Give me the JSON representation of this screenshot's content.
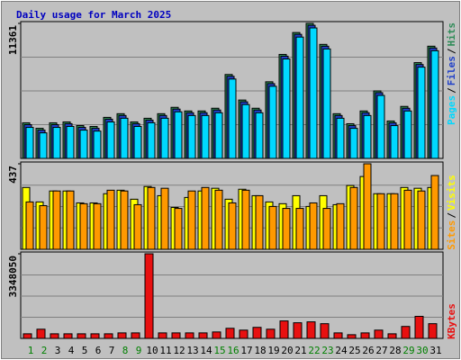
{
  "chart_data": [
    {
      "type": "bar",
      "title": "Daily usage for March 2025",
      "categories": [
        "1",
        "2",
        "3",
        "4",
        "5",
        "6",
        "7",
        "8",
        "9",
        "10",
        "11",
        "12",
        "13",
        "14",
        "15",
        "16",
        "17",
        "18",
        "19",
        "20",
        "21",
        "22",
        "23",
        "24",
        "25",
        "26",
        "27",
        "28",
        "29",
        "30",
        "31"
      ],
      "category_colors": [
        "#008000",
        "#008000",
        "#000000",
        "#000000",
        "#000000",
        "#000000",
        "#000000",
        "#008000",
        "#008000",
        "#000000",
        "#000000",
        "#000000",
        "#000000",
        "#000000",
        "#008000",
        "#008000",
        "#000000",
        "#000000",
        "#000000",
        "#000000",
        "#000000",
        "#008000",
        "#008000",
        "#000000",
        "#000000",
        "#000000",
        "#000000",
        "#000000",
        "#008000",
        "#008000",
        "#000000"
      ],
      "legend_separator": "/",
      "ylim": [
        0,
        11361
      ],
      "yticks": [
        11361
      ],
      "series": [
        {
          "name": "Hits",
          "color": "#2e8b57",
          "values": [
            2994,
            2533,
            2994,
            3070,
            2763,
            2687,
            3454,
            3761,
            3070,
            3377,
            3761,
            4299,
            3992,
            3992,
            4222,
            7062,
            4913,
            4222,
            6448,
            8751,
            10593,
            11361,
            9595,
            3761,
            2917,
            3992,
            5680,
            3147,
            4375,
            8060,
            9442
          ]
        },
        {
          "name": "Files",
          "color": "#2040c8",
          "values": [
            2840,
            2380,
            2840,
            2920,
            2610,
            2530,
            3300,
            3610,
            2920,
            3220,
            3610,
            4150,
            3840,
            3840,
            4070,
            6910,
            4760,
            4070,
            6290,
            8600,
            10440,
            11200,
            9440,
            3610,
            2760,
            3840,
            5530,
            2990,
            4220,
            7900,
            9290
          ]
        },
        {
          "name": "Pages",
          "color": "#00d8ff",
          "values": [
            2610,
            2150,
            2610,
            2690,
            2380,
            2300,
            3070,
            3380,
            2690,
            3000,
            3380,
            3920,
            3610,
            3610,
            3840,
            6680,
            4530,
            3840,
            6070,
            8370,
            10210,
            10980,
            9210,
            3380,
            2530,
            3610,
            5300,
            2760,
            3990,
            7680,
            9060
          ]
        }
      ]
    },
    {
      "type": "bar",
      "ylim": [
        0,
        437
      ],
      "yticks": [
        437
      ],
      "series": [
        {
          "name": "Visits",
          "color": "#ffff00",
          "values": [
            316,
            242,
            298,
            298,
            237,
            237,
            284,
            302,
            256,
            321,
            274,
            214,
            265,
            298,
            312,
            256,
            307,
            274,
            242,
            233,
            274,
            219,
            274,
            228,
            326,
            372,
            284,
            284,
            316,
            312,
            316
          ]
        },
        {
          "name": "Sites",
          "color": "#ff9900",
          "values": [
            242,
            223,
            298,
            298,
            233,
            233,
            302,
            298,
            228,
            316,
            312,
            209,
            298,
            316,
            302,
            237,
            302,
            274,
            219,
            209,
            209,
            237,
            209,
            233,
            316,
            437,
            284,
            284,
            302,
            298,
            377
          ]
        }
      ]
    },
    {
      "type": "bar",
      "ylim": [
        0,
        3348050
      ],
      "yticks": [
        3348050
      ],
      "series": [
        {
          "name": "KBytes",
          "color": "#e81010",
          "values": [
            182000,
            364000,
            182000,
            182000,
            182000,
            182000,
            182000,
            218000,
            218000,
            3348050,
            218000,
            218000,
            218000,
            218000,
            255000,
            400000,
            328000,
            437000,
            364000,
            691000,
            619000,
            655000,
            582000,
            218000,
            146000,
            218000,
            328000,
            182000,
            473000,
            873000,
            582000
          ]
        }
      ]
    }
  ]
}
